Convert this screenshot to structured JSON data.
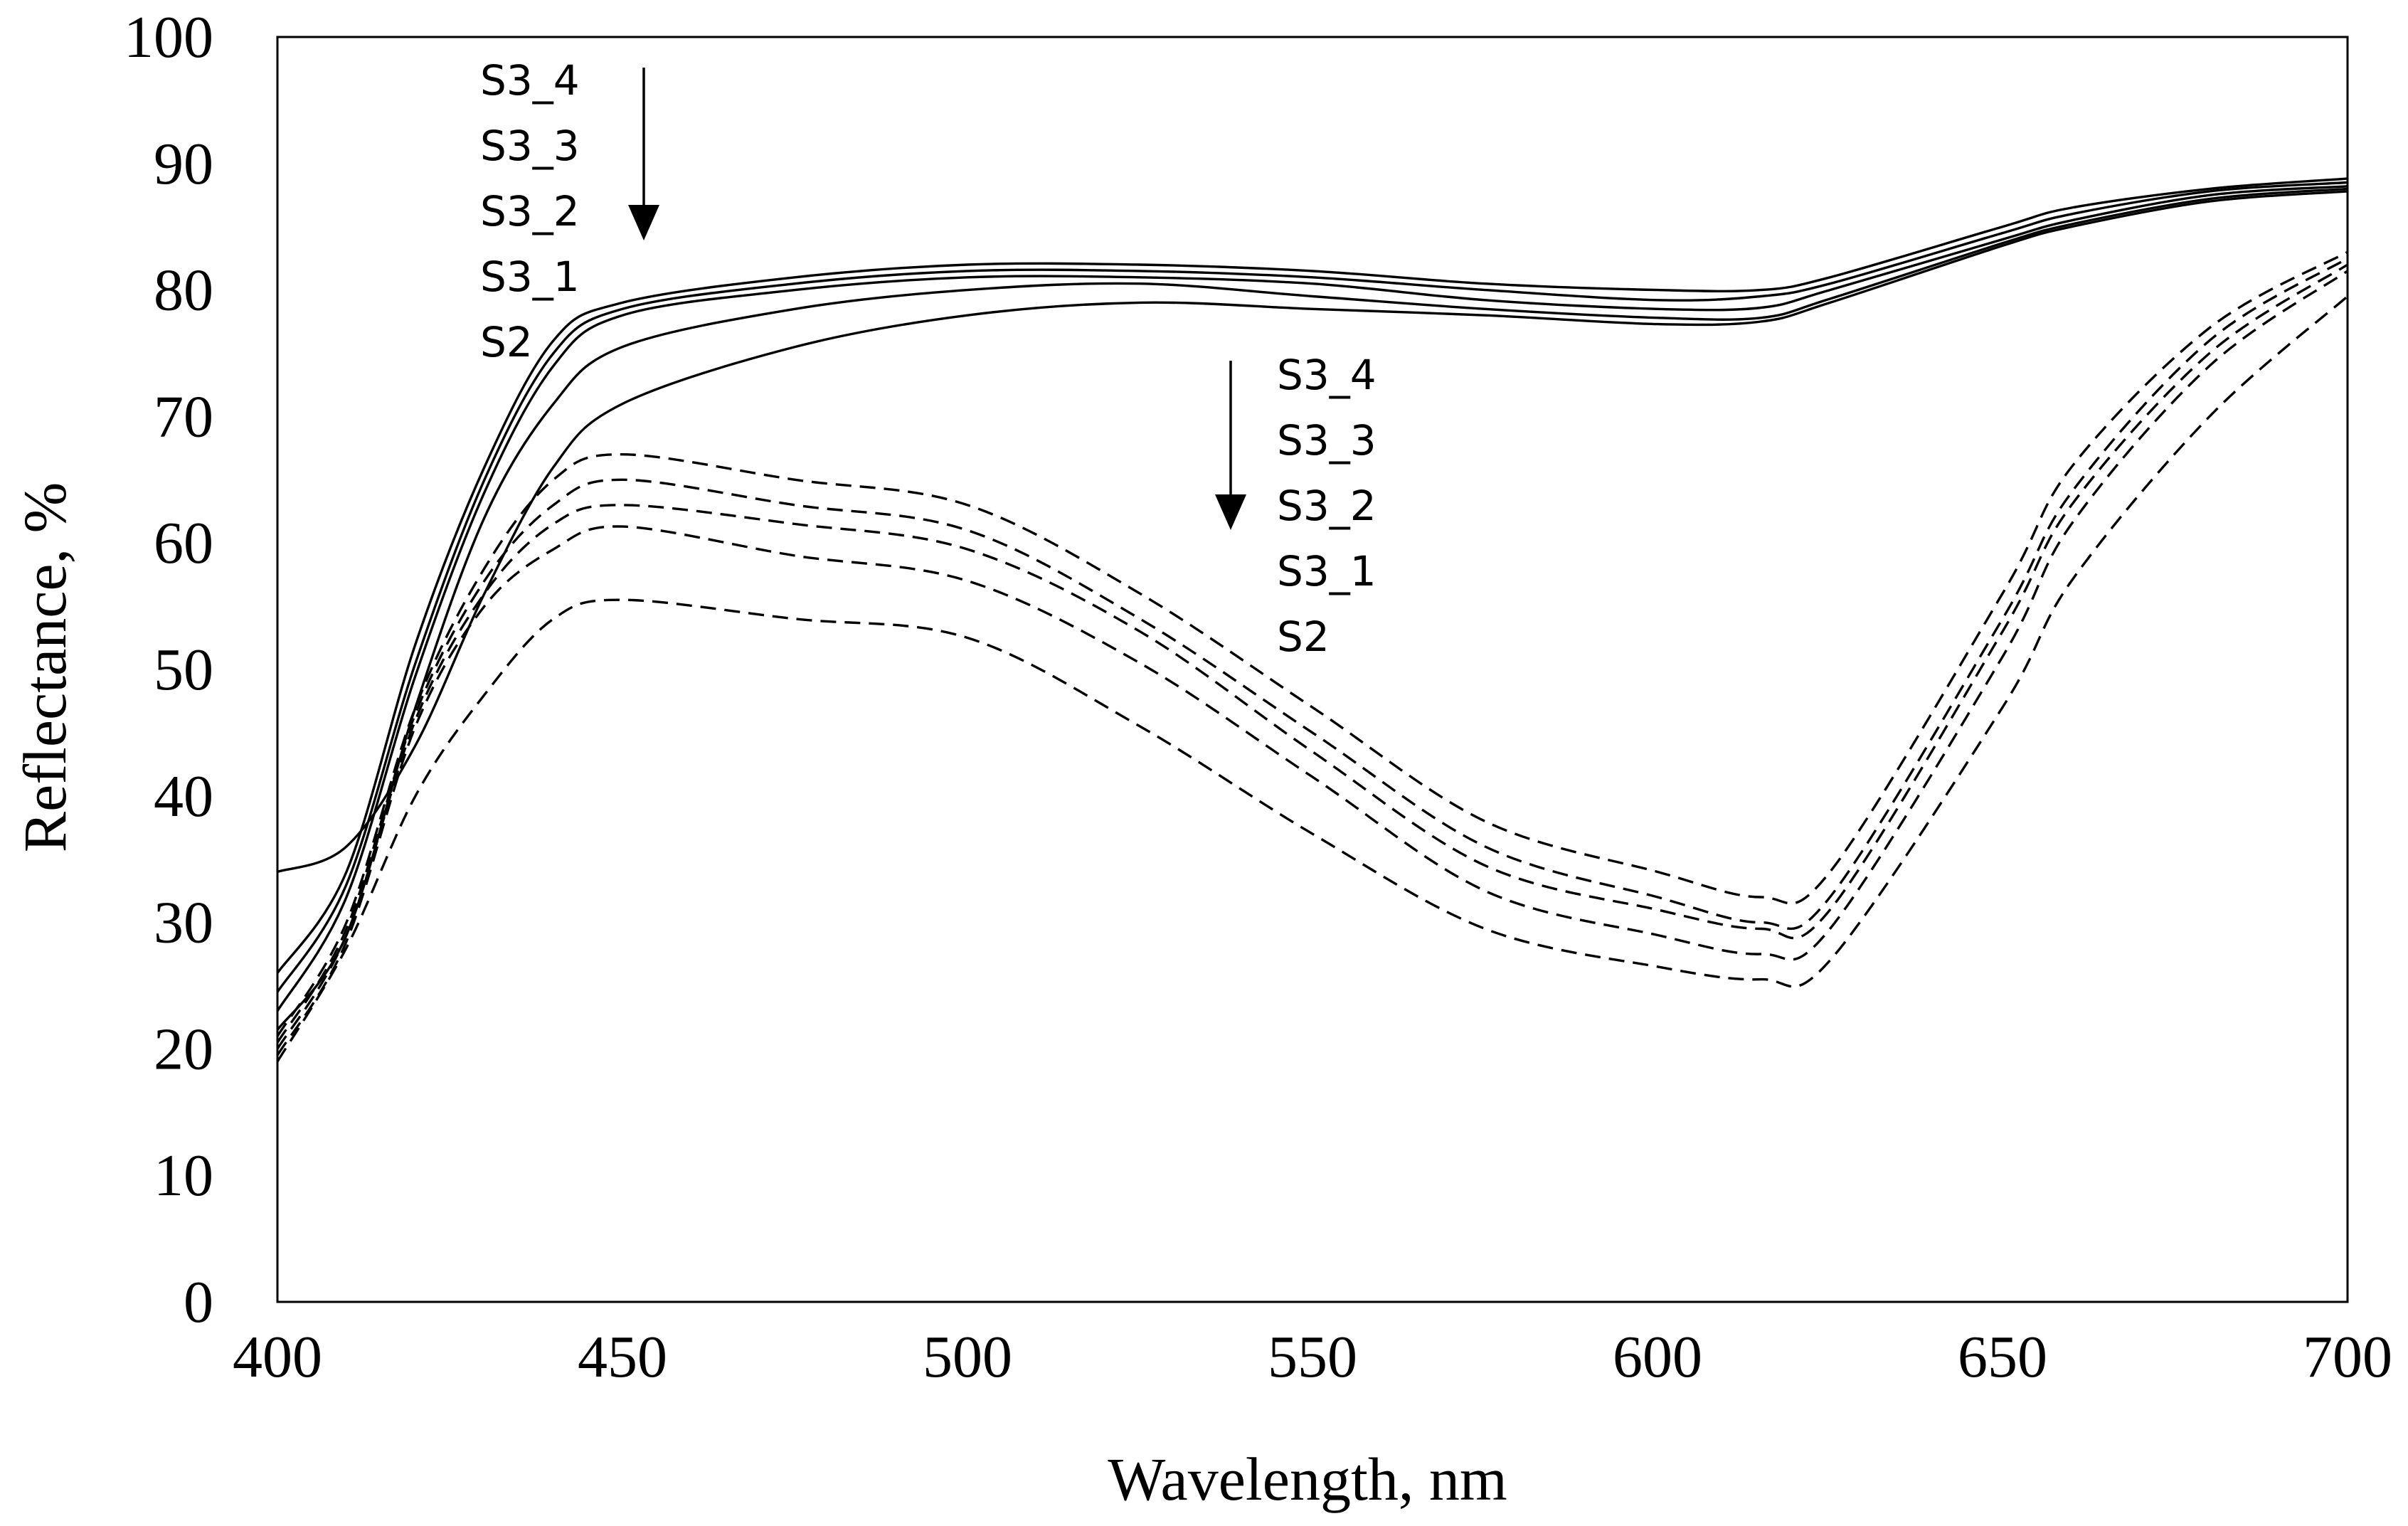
{
  "chart_data": {
    "type": "line",
    "xlabel": "Wavelength, nm",
    "ylabel": "Reflectance, %",
    "xlim": [
      400,
      700
    ],
    "ylim": [
      0,
      100
    ],
    "xticks": [
      400,
      450,
      500,
      550,
      600,
      650,
      700
    ],
    "yticks": [
      0,
      10,
      20,
      30,
      40,
      50,
      60,
      70,
      80,
      90,
      100
    ],
    "x": [
      400,
      410,
      420,
      430,
      440,
      450,
      475,
      500,
      525,
      550,
      575,
      600,
      615,
      625,
      650,
      660,
      680,
      700
    ],
    "series": [
      {
        "group": "solid",
        "name": "S3_4",
        "values": [
          26,
          34,
          52,
          66,
          76,
          79,
          81,
          82,
          82,
          81.5,
          80.5,
          80,
          80,
          81,
          85,
          86.5,
          88,
          88.8
        ]
      },
      {
        "group": "solid",
        "name": "S3_3",
        "values": [
          24.5,
          33,
          50.5,
          65,
          75,
          78.5,
          80.5,
          81.5,
          81.5,
          81,
          80,
          79.2,
          79.5,
          80.5,
          84.5,
          86,
          87.8,
          88.5
        ]
      },
      {
        "group": "solid",
        "name": "S3_2",
        "values": [
          23,
          32,
          49.5,
          64,
          74,
          78,
          80,
          81,
          81,
          80.5,
          79.2,
          78.5,
          78.6,
          80,
          84,
          85.5,
          87.5,
          88.2
        ]
      },
      {
        "group": "solid",
        "name": "S3_1",
        "values": [
          21.5,
          29,
          47,
          62,
          71,
          75.5,
          78.5,
          80,
          80.5,
          79.5,
          78.5,
          77.8,
          77.8,
          79.3,
          83.7,
          85.2,
          87.2,
          88
        ]
      },
      {
        "group": "solid",
        "name": "S2",
        "values": [
          34,
          36,
          44,
          56,
          66,
          71,
          75.5,
          78,
          79,
          78.5,
          78,
          77.3,
          77.5,
          79,
          83.5,
          85,
          87,
          87.8
        ]
      },
      {
        "group": "dashed",
        "name": "S3_4",
        "values": [
          21,
          30,
          47,
          58,
          65,
          67,
          65,
          63,
          56,
          47,
          38,
          34,
          32,
          34,
          56,
          66,
          77,
          83
        ]
      },
      {
        "group": "dashed",
        "name": "S3_3",
        "values": [
          20.5,
          29.5,
          46.5,
          57,
          63,
          65,
          63,
          61,
          54,
          45,
          36,
          32,
          30,
          32,
          54,
          64,
          76,
          82.5
        ]
      },
      {
        "group": "dashed",
        "name": "S3_2",
        "values": [
          20,
          29,
          46,
          56,
          61.5,
          63,
          61.5,
          59.5,
          53,
          43.5,
          34.5,
          31,
          29.5,
          31,
          53,
          63,
          75,
          82
        ]
      },
      {
        "group": "dashed",
        "name": "S3_1",
        "values": [
          19.5,
          28.5,
          45.5,
          55,
          59.5,
          61.3,
          59,
          57,
          50.5,
          41.5,
          32.5,
          29,
          27.5,
          29.5,
          51,
          61.5,
          74,
          81.5
        ]
      },
      {
        "group": "dashed",
        "name": "S2",
        "values": [
          19,
          28,
          40,
          48,
          54,
          55.5,
          54,
          52.5,
          45.5,
          37,
          29.5,
          26.5,
          25.5,
          27,
          47,
          57,
          70,
          79.5
        ]
      }
    ],
    "annotations": [
      {
        "group": "solid",
        "labels": [
          "S3_4",
          "S3_3",
          "S3_2",
          "S3_1",
          "S2"
        ]
      },
      {
        "group": "dashed",
        "labels": [
          "S3_4",
          "S3_3",
          "S3_2",
          "S3_1",
          "S2"
        ]
      }
    ]
  }
}
